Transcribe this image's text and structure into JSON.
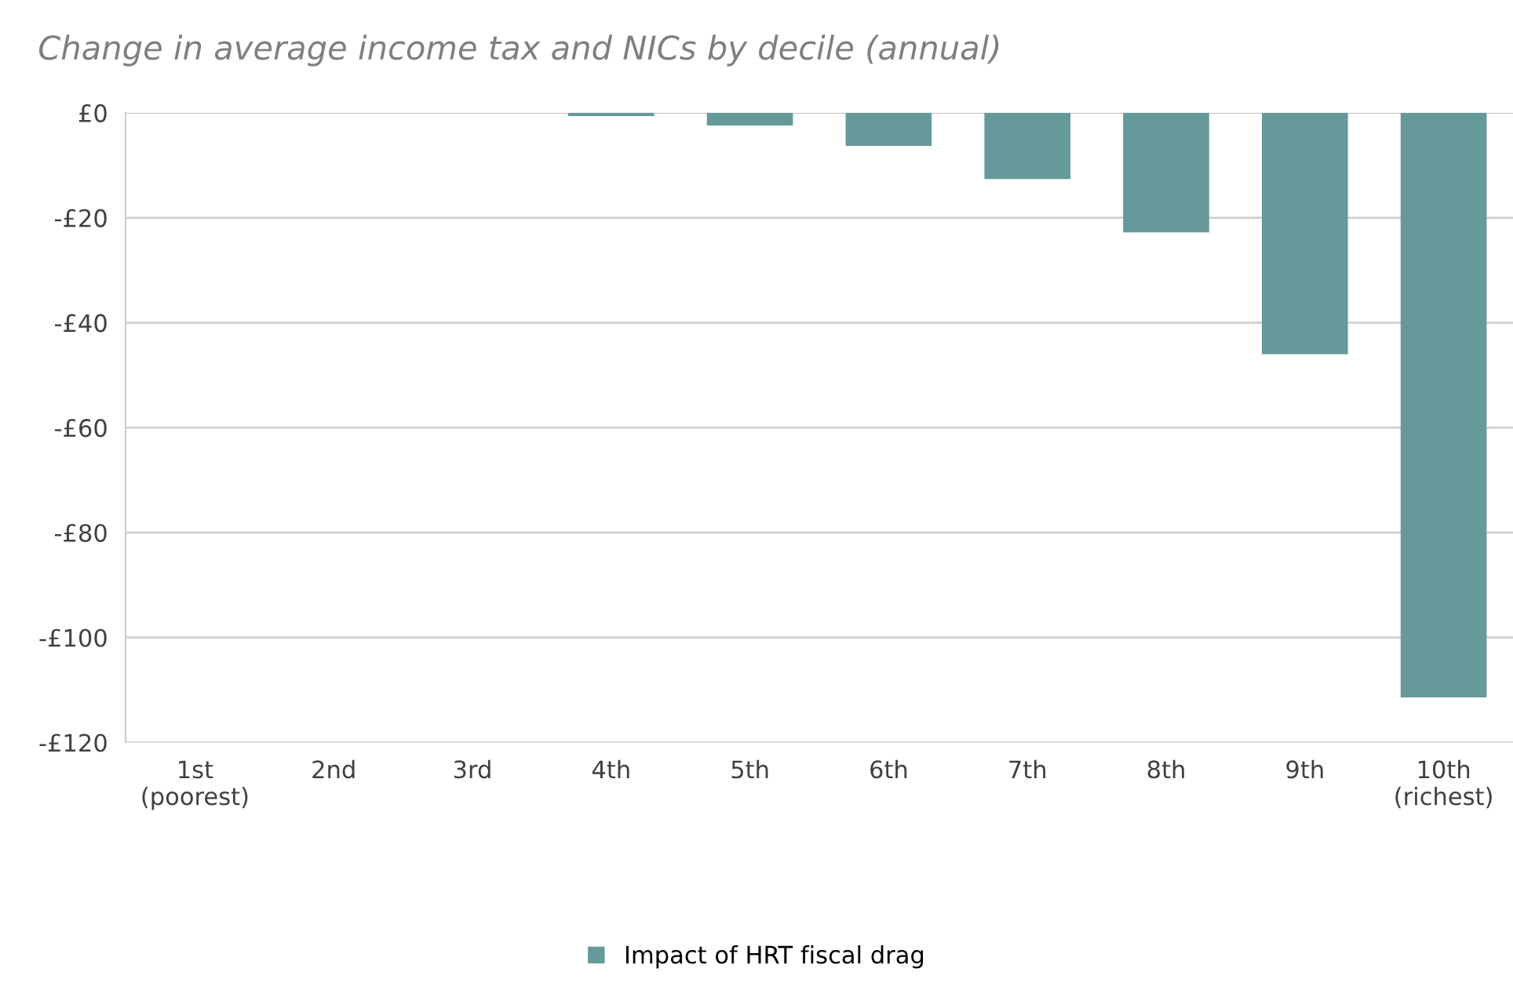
{
  "chart_data": {
    "type": "bar",
    "title": "Change in average income tax and NICs by decile (annual)",
    "categories": [
      "1st\n(poorest)",
      "2nd",
      "3rd",
      "4th",
      "5th",
      "6th",
      "7th",
      "8th",
      "9th",
      "10th\n(richest)"
    ],
    "series": [
      {
        "name": "Impact of HRT fiscal drag",
        "color": "#669999",
        "values": [
          0,
          0,
          0,
          -0.6,
          -2.4,
          -6.3,
          -12.6,
          -22.8,
          -46,
          -111.4
        ]
      }
    ],
    "ylim": [
      -120,
      0
    ],
    "yticks": [
      {
        "value": -120,
        "label": "-£120"
      },
      {
        "value": -100,
        "label": "-£100"
      },
      {
        "value": -80,
        "label": "-£80"
      },
      {
        "value": -60,
        "label": "-£60"
      },
      {
        "value": -40,
        "label": "-£40"
      },
      {
        "value": -20,
        "label": "-£20"
      },
      {
        "value": 0,
        "label": "£0"
      }
    ],
    "grid": "y",
    "legend": "bottom"
  }
}
